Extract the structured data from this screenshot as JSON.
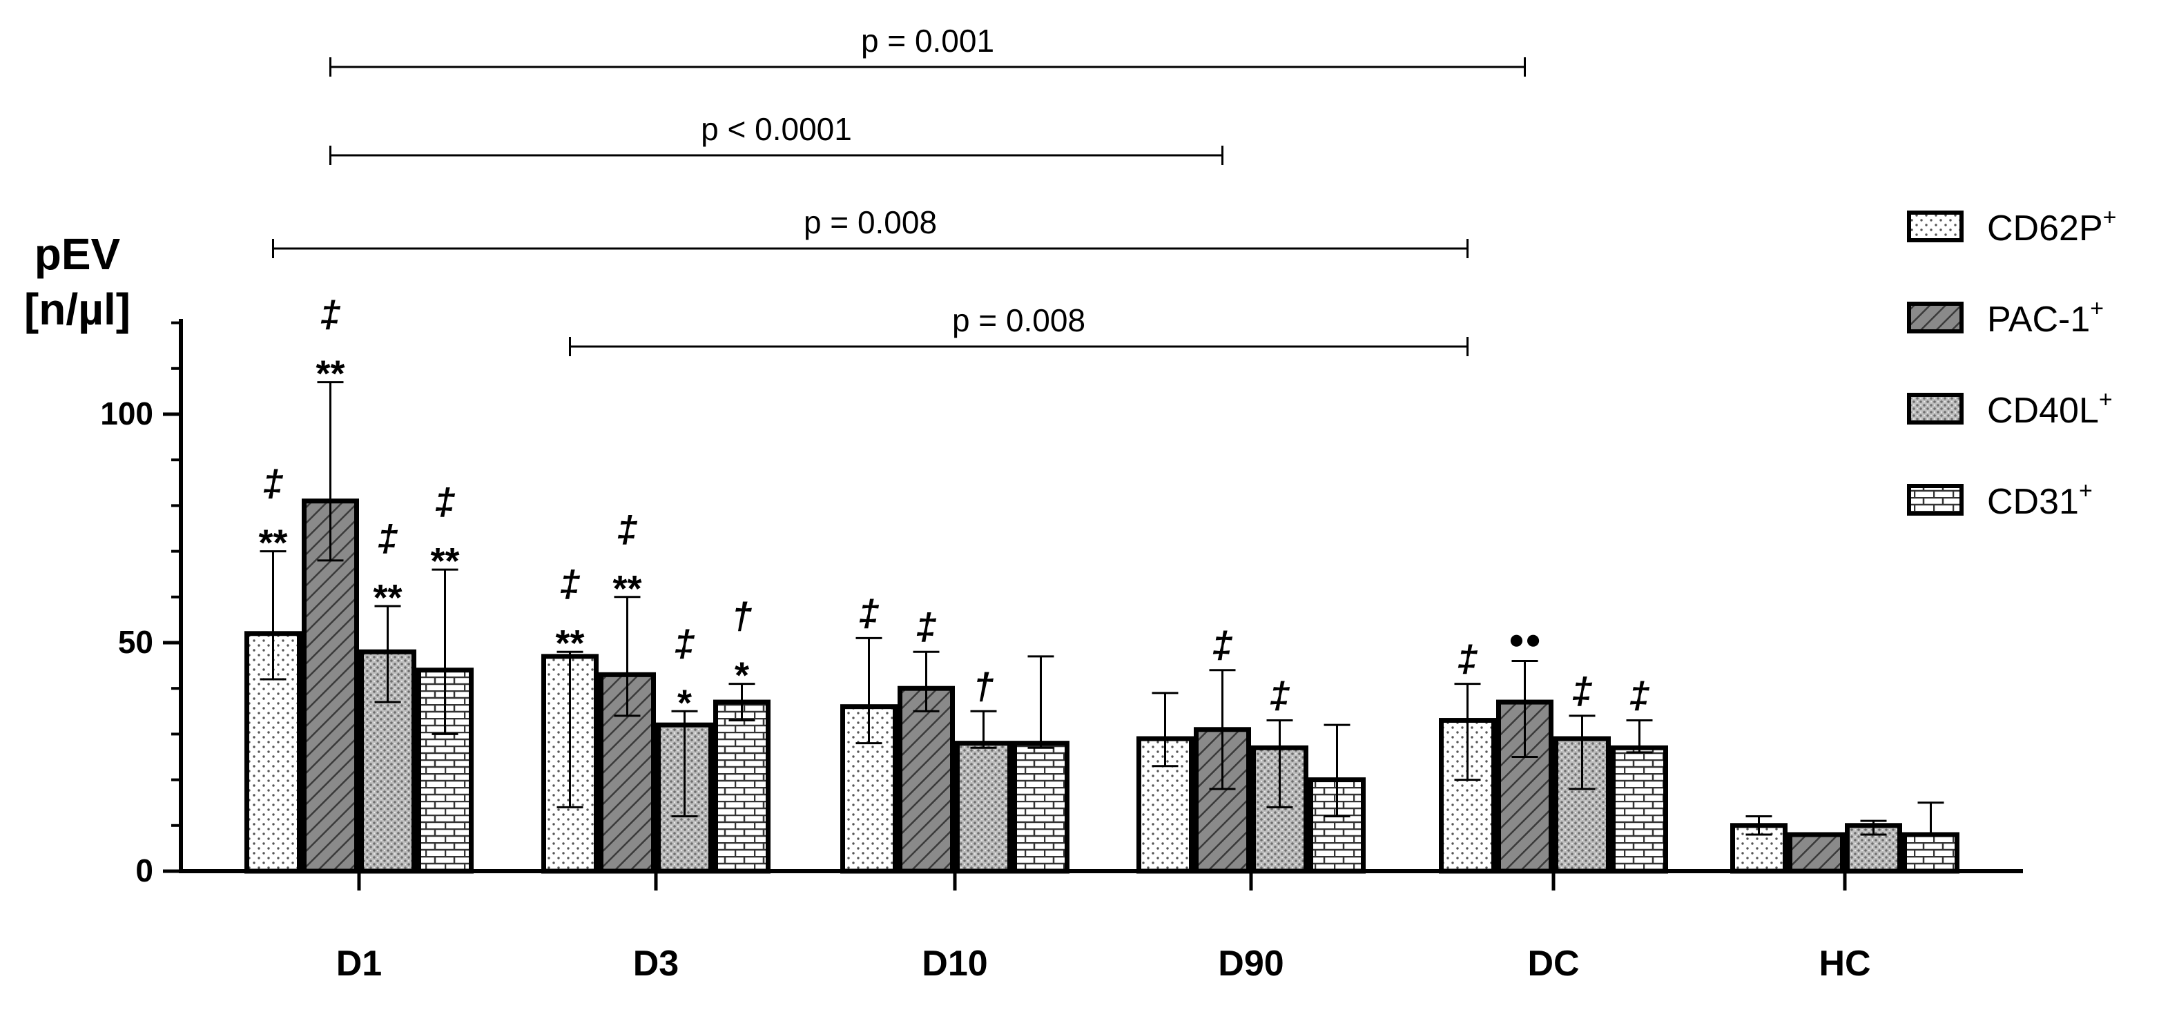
{
  "chart_data": {
    "type": "bar",
    "ylabel": [
      "pEV",
      "[n/µl]"
    ],
    "ylim": [
      0,
      120
    ],
    "yticks": [
      0,
      50,
      100
    ],
    "categories": [
      "D1",
      "D3",
      "D10",
      "D90",
      "DC",
      "HC"
    ],
    "series": [
      {
        "name": "CD62P",
        "superscript": "+",
        "pattern": "dots",
        "values": [
          52,
          47,
          36,
          29,
          33,
          10
        ],
        "err_upper": [
          70,
          48,
          51,
          39,
          41,
          12
        ],
        "err_lower": [
          42,
          14,
          28,
          23,
          20,
          8
        ]
      },
      {
        "name": "PAC-1",
        "superscript": "+",
        "pattern": "hatch",
        "values": [
          81,
          43,
          40,
          31,
          37,
          8
        ],
        "err_upper": [
          107,
          60,
          48,
          44,
          46,
          8
        ],
        "err_lower": [
          68,
          34,
          35,
          18,
          25,
          8
        ]
      },
      {
        "name": "CD40L",
        "superscript": "+",
        "pattern": "speckle",
        "values": [
          48,
          32,
          28,
          27,
          29,
          10
        ],
        "err_upper": [
          58,
          35,
          35,
          33,
          34,
          11
        ],
        "err_lower": [
          37,
          12,
          27,
          14,
          18,
          8
        ]
      },
      {
        "name": "CD31",
        "superscript": "+",
        "pattern": "brick",
        "values": [
          44,
          37,
          28,
          20,
          27,
          8
        ],
        "err_upper": [
          66,
          41,
          47,
          32,
          33,
          15
        ],
        "err_lower": [
          30,
          33,
          27,
          12,
          26,
          8
        ]
      }
    ],
    "annotations": [
      {
        "category": "D1",
        "series": "CD62P",
        "lines": [
          "‡",
          "**"
        ]
      },
      {
        "category": "D1",
        "series": "PAC-1",
        "lines": [
          "‡",
          "**"
        ]
      },
      {
        "category": "D1",
        "series": "CD40L",
        "lines": [
          "‡",
          "**"
        ]
      },
      {
        "category": "D1",
        "series": "CD31",
        "lines": [
          "‡",
          "**"
        ]
      },
      {
        "category": "D3",
        "series": "CD62P",
        "lines": [
          "‡",
          "**"
        ]
      },
      {
        "category": "D3",
        "series": "PAC-1",
        "lines": [
          "‡",
          "**"
        ]
      },
      {
        "category": "D3",
        "series": "CD40L",
        "lines": [
          "‡",
          "*"
        ]
      },
      {
        "category": "D3",
        "series": "CD31",
        "lines": [
          "†",
          "*"
        ]
      },
      {
        "category": "D10",
        "series": "CD62P",
        "lines": [
          "‡"
        ]
      },
      {
        "category": "D10",
        "series": "PAC-1",
        "lines": [
          "‡"
        ]
      },
      {
        "category": "D10",
        "series": "CD40L",
        "lines": [
          "†"
        ]
      },
      {
        "category": "D90",
        "series": "PAC-1",
        "lines": [
          "‡"
        ]
      },
      {
        "category": "D90",
        "series": "CD40L",
        "lines": [
          "‡"
        ]
      },
      {
        "category": "DC",
        "series": "CD62P",
        "lines": [
          "‡"
        ]
      },
      {
        "category": "DC",
        "series": "PAC-1",
        "lines": [
          "●●"
        ]
      },
      {
        "category": "DC",
        "series": "CD40L",
        "lines": [
          "‡"
        ]
      },
      {
        "category": "DC",
        "series": "CD31",
        "lines": [
          "‡"
        ]
      }
    ],
    "comparisons": [
      {
        "from": {
          "category": "D1",
          "series": "PAC-1"
        },
        "to": {
          "category": "DC",
          "series": "PAC-1"
        },
        "label": "p = 0.001"
      },
      {
        "from": {
          "category": "D1",
          "series": "PAC-1"
        },
        "to": {
          "category": "D90",
          "series": "PAC-1"
        },
        "label": "p < 0.0001"
      },
      {
        "from": {
          "category": "D1",
          "series": "CD62P"
        },
        "to": {
          "category": "DC",
          "series": "CD62P"
        },
        "label": "p = 0.008"
      },
      {
        "from": {
          "category": "D3",
          "series": "CD62P"
        },
        "to": {
          "category": "DC",
          "series": "CD62P"
        },
        "label": "p = 0.008"
      }
    ],
    "legend_position": "top-right"
  }
}
